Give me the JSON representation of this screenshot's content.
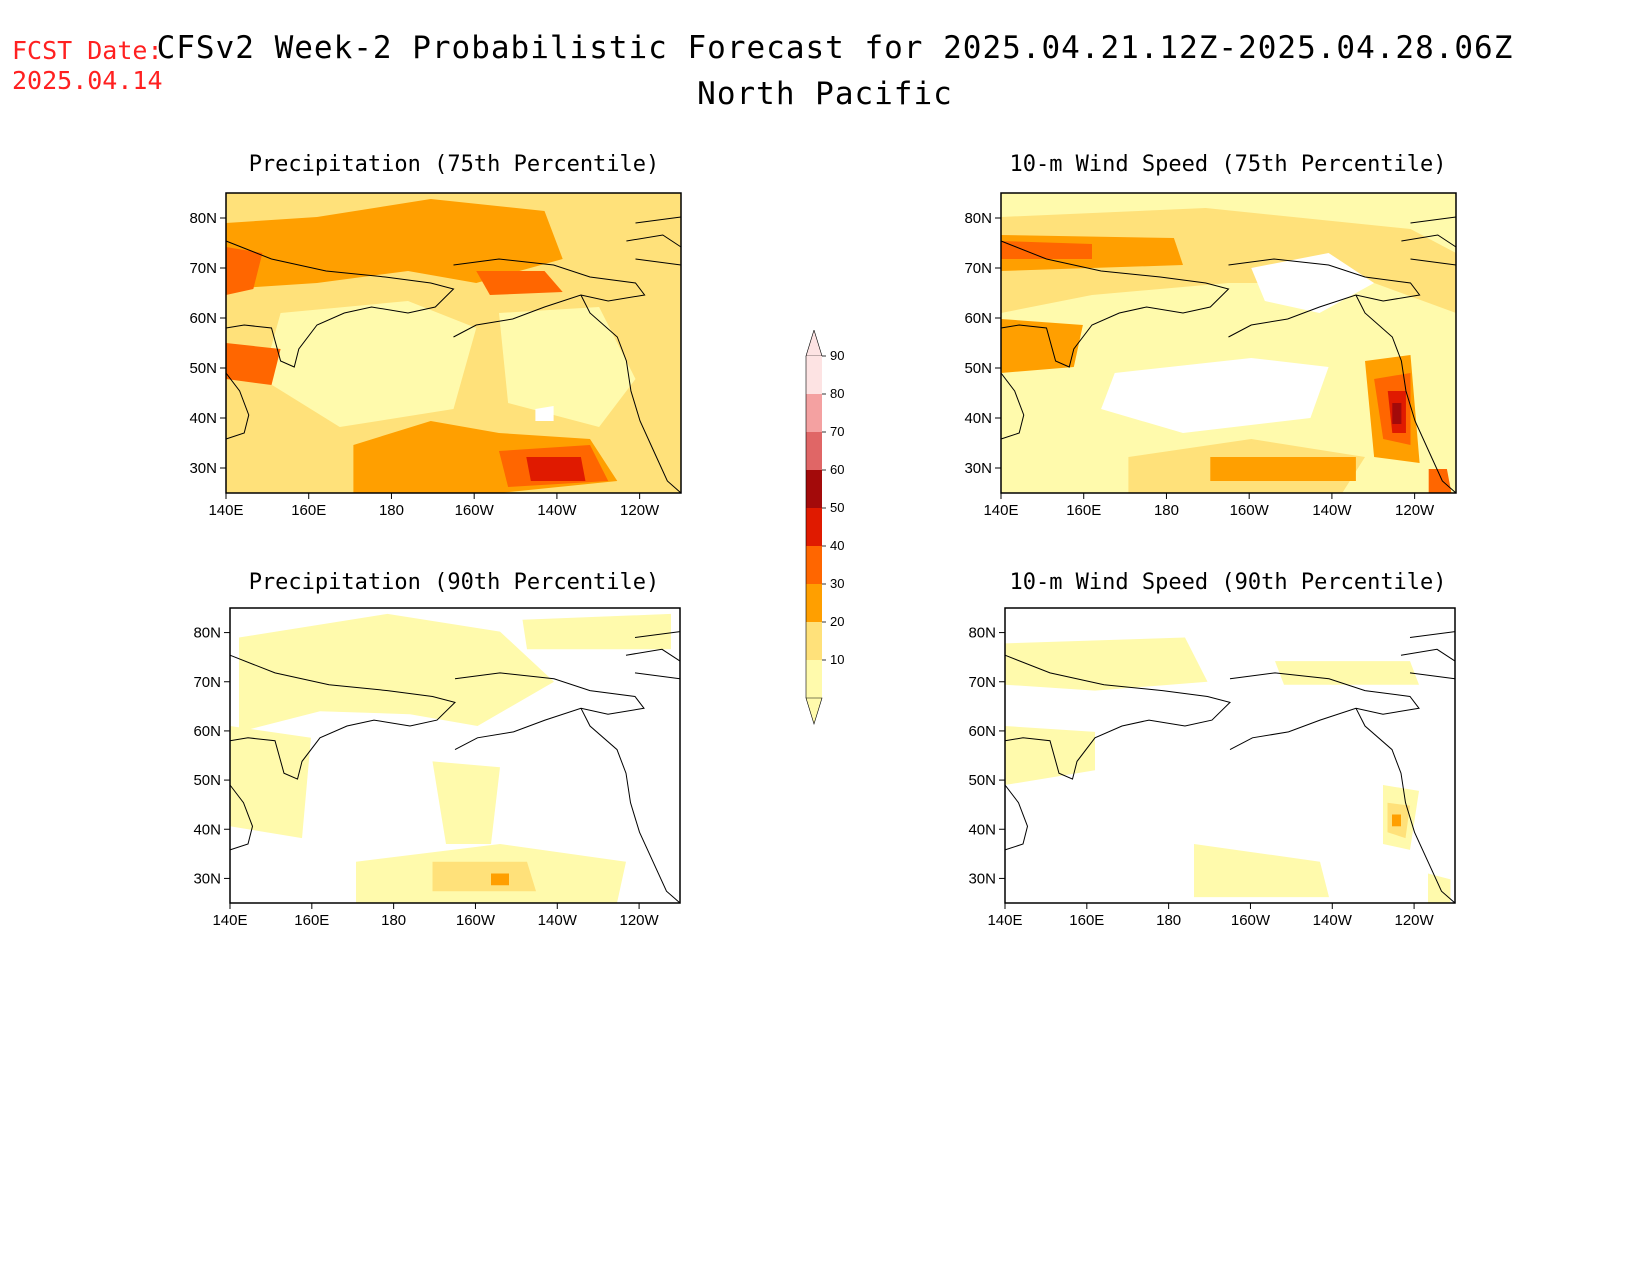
{
  "header": {
    "fcst_label": "FCST Date:",
    "fcst_date": "2025.04.14",
    "title": "CFSv2 Week-2 Probabilistic Forecast for 2025.04.21.12Z-2025.04.28.06Z",
    "subtitle": "North Pacific"
  },
  "map": {
    "lat_labels": [
      "80N",
      "70N",
      "60N",
      "50N",
      "40N",
      "30N"
    ],
    "lon_labels": [
      "140E",
      "160E",
      "180",
      "160W",
      "140W",
      "120W"
    ]
  },
  "panels": [
    {
      "title": "Precipitation (75th Percentile)"
    },
    {
      "title": "10-m Wind Speed (75th Percentile)"
    },
    {
      "title": "Precipitation (90th Percentile)"
    },
    {
      "title": "10-m Wind Speed (90th Percentile)"
    }
  ],
  "colorbar": {
    "labels": [
      "90",
      "80",
      "70",
      "60",
      "50",
      "40",
      "30",
      "20",
      "10"
    ],
    "colors": [
      "#fde3e3",
      "#f4a1a1",
      "#e06666",
      "#a30a0a",
      "#e01a00",
      "#ff6600",
      "#ff9f00",
      "#ffe17a",
      "#fffaac"
    ]
  }
}
